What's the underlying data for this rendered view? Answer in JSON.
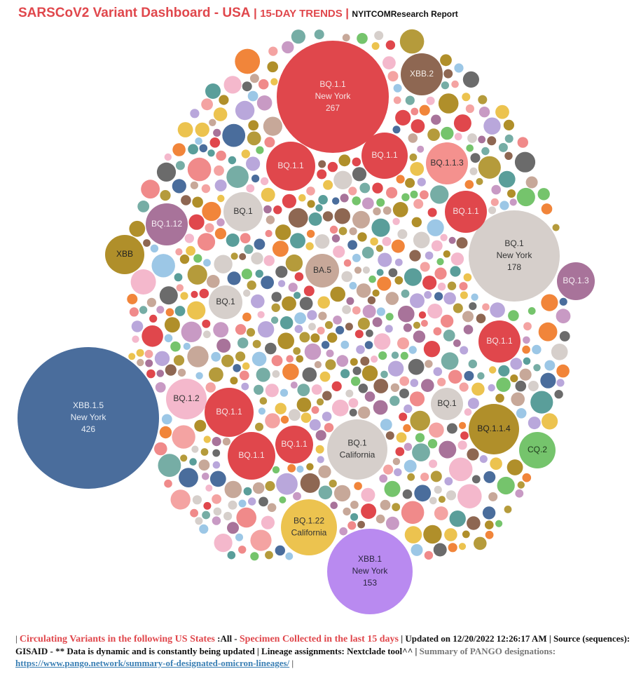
{
  "header": {
    "title": "SARSCoV2 Variant Dashboard - USA",
    "separator": "|",
    "subtitle": "15-DAY TRENDS",
    "separator2": "|",
    "report": "NYITCOMResearch Report"
  },
  "colors": {
    "title_red": "#e0474c",
    "link_blue": "#3a7fb4",
    "palette": [
      "#4a6d9c",
      "#e0474c",
      "#d6cfcb",
      "#b08f2a",
      "#a8739a",
      "#f4b8cc",
      "#ecc34f",
      "#76ada5",
      "#c89ac4",
      "#f08a8a",
      "#8e6752",
      "#f4a3a2",
      "#b9a7db",
      "#f1853a",
      "#75c46c",
      "#5a9e9a",
      "#9cc7e6",
      "#6b6b6b",
      "#c7a899",
      "#b59b3b"
    ]
  },
  "chart_data": {
    "type": "bubble",
    "title": "SARSCoV2 Variant Dashboard - USA",
    "labeled_bubbles": [
      {
        "lineage": "XBB.1.5",
        "state": "New York",
        "count": 426,
        "color": "#4a6d9c"
      },
      {
        "lineage": "BQ.1.1",
        "state": "New York",
        "count": 267,
        "color": "#e0474c"
      },
      {
        "lineage": "BQ.1",
        "state": "New York",
        "count": 178,
        "color": "#d6cfcb"
      },
      {
        "lineage": "XBB.1",
        "state": "New York",
        "count": 153,
        "color": "#b98af0"
      },
      {
        "lineage": "BQ.1",
        "state": "California",
        "color": "#d6cfcb"
      },
      {
        "lineage": "BQ.1.22",
        "state": "California",
        "color": "#ecc34f"
      },
      {
        "lineage": "XBB.2",
        "color": "#8e6752"
      },
      {
        "lineage": "BQ.1.1.3",
        "color": "#f4918e"
      },
      {
        "lineage": "BQ.1.12",
        "color": "#a8739a"
      },
      {
        "lineage": "XBB",
        "color": "#b08f2a"
      },
      {
        "lineage": "BQ.1.3",
        "color": "#a8739a"
      },
      {
        "lineage": "BQ.1.2",
        "color": "#f4b8cc"
      },
      {
        "lineage": "BQ.1.1.4",
        "color": "#b08f2a"
      },
      {
        "lineage": "CQ.2",
        "color": "#75c46c"
      },
      {
        "lineage": "BA.5",
        "color": "#c7a899"
      },
      {
        "lineage": "BQ.1.1",
        "color": "#e0474c"
      },
      {
        "lineage": "BQ.1.1",
        "color": "#e0474c"
      },
      {
        "lineage": "BQ.1.1",
        "color": "#e0474c"
      },
      {
        "lineage": "BQ.1.1",
        "color": "#e0474c"
      },
      {
        "lineage": "BQ.1.1",
        "color": "#e0474c"
      },
      {
        "lineage": "BQ.1.1",
        "color": "#e0474c"
      },
      {
        "lineage": "BQ.1.1",
        "color": "#e0474c"
      },
      {
        "lineage": "BQ.1",
        "color": "#d6cfcb"
      },
      {
        "lineage": "BQ.1",
        "color": "#d6cfcb"
      },
      {
        "lineage": "BQ.1",
        "color": "#d6cfcb"
      }
    ]
  },
  "footer": {
    "pipe_start": "|",
    "circ_label": "Circulating Variants in the following US States",
    "states": ":All -",
    "specimen": "Specimen Collected in the last 15 days",
    "updated": "| Updated on 12/20/2022 12:26:17 AM | Source (sequences): GISAID - ** Data is dynamic and is constantly being updated | Lineage assignments: Nextclade tool^^ |",
    "summary": "Summary of PANGO designations:",
    "link": "https://www.pango.network/summary-of-designated-omicron-lineages/",
    "pipe_end": "|"
  }
}
